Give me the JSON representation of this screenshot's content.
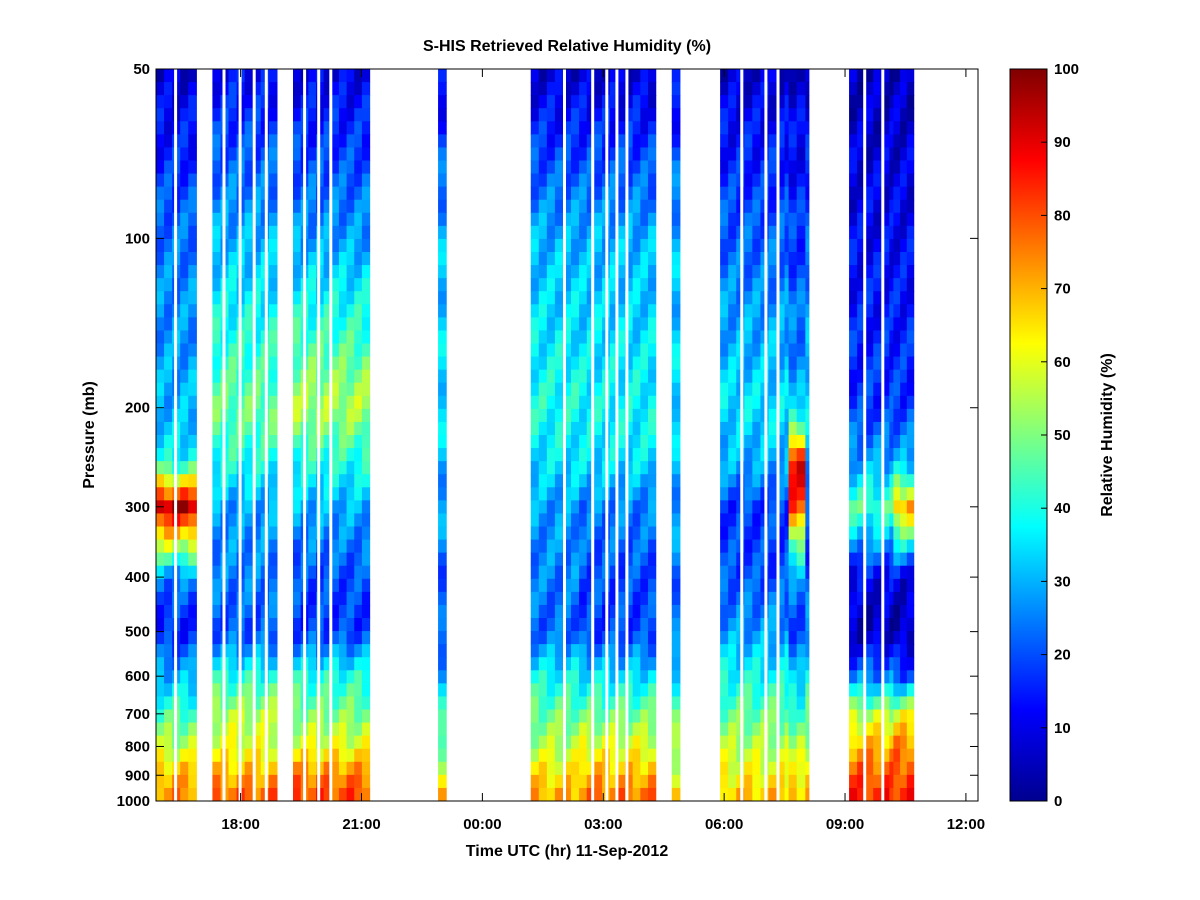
{
  "chart_data": {
    "type": "heatmap",
    "title": "S-HIS Retrieved Relative Humidity (%)",
    "xlabel": "Time UTC (hr) 11-Sep-2012",
    "ylabel": "Pressure (mb)",
    "colorbar_label": "Relative Humidity (%)",
    "y_scale": "log",
    "y_reversed": true,
    "ylim": [
      50,
      1000
    ],
    "xlim_hours": [
      15.9,
      36.3
    ],
    "x_ticks": [
      {
        "hour": 18,
        "label": "18:00"
      },
      {
        "hour": 21,
        "label": "21:00"
      },
      {
        "hour": 24,
        "label": "00:00"
      },
      {
        "hour": 27,
        "label": "03:00"
      },
      {
        "hour": 30,
        "label": "06:00"
      },
      {
        "hour": 33,
        "label": "09:00"
      },
      {
        "hour": 36,
        "label": "12:00"
      }
    ],
    "y_ticks": [
      50,
      100,
      200,
      300,
      400,
      500,
      600,
      700,
      800,
      900,
      1000
    ],
    "colorbar_range": [
      0,
      100
    ],
    "colorbar_ticks": [
      0,
      10,
      20,
      30,
      40,
      50,
      60,
      70,
      80,
      90,
      100
    ],
    "colormap": "jet",
    "contours": "black",
    "grid": false,
    "pressure_levels": [
      50,
      100,
      200,
      250,
      300,
      400,
      500,
      600,
      700,
      800,
      900,
      1000
    ],
    "segments": [
      {
        "start": 15.9,
        "end": 16.9,
        "rh": [
          8,
          24,
          30,
          38,
          95,
          25,
          15,
          30,
          45,
          55,
          70,
          75
        ]
      },
      {
        "start": 17.3,
        "end": 18.9,
        "rh": [
          12,
          30,
          48,
          40,
          28,
          25,
          20,
          40,
          55,
          60,
          70,
          80
        ]
      },
      {
        "start": 19.3,
        "end": 21.2,
        "rh": [
          10,
          28,
          55,
          40,
          30,
          20,
          18,
          40,
          50,
          60,
          75,
          82
        ]
      },
      {
        "start": 22.9,
        "end": 23.1,
        "rh": [
          10,
          30,
          35,
          30,
          28,
          22,
          20,
          30,
          40,
          50,
          60,
          70
        ]
      },
      {
        "start": 25.2,
        "end": 26.4,
        "rh": [
          8,
          30,
          40,
          35,
          28,
          25,
          22,
          38,
          48,
          55,
          65,
          72
        ]
      },
      {
        "start": 26.4,
        "end": 28.3,
        "rh": [
          8,
          30,
          38,
          35,
          25,
          20,
          18,
          35,
          48,
          60,
          70,
          78
        ]
      },
      {
        "start": 28.7,
        "end": 28.9,
        "rh": [
          10,
          30,
          35,
          30,
          28,
          24,
          22,
          36,
          45,
          55,
          60,
          70
        ]
      },
      {
        "start": 29.9,
        "end": 32.1,
        "rh": [
          8,
          22,
          35,
          30,
          18,
          20,
          28,
          38,
          48,
          55,
          62,
          70
        ]
      },
      {
        "start": 31.6,
        "end": 32.0,
        "rh": [
          8,
          18,
          30,
          90,
          80,
          25,
          20,
          30,
          45,
          55,
          60,
          72
        ]
      },
      {
        "start": 33.1,
        "end": 34.7,
        "rh": [
          6,
          12,
          18,
          28,
          45,
          12,
          5,
          25,
          55,
          70,
          80,
          85
        ]
      },
      {
        "start": 34.2,
        "end": 34.7,
        "rh": [
          6,
          12,
          18,
          30,
          70,
          10,
          5,
          20,
          60,
          75,
          80,
          85
        ]
      }
    ]
  }
}
